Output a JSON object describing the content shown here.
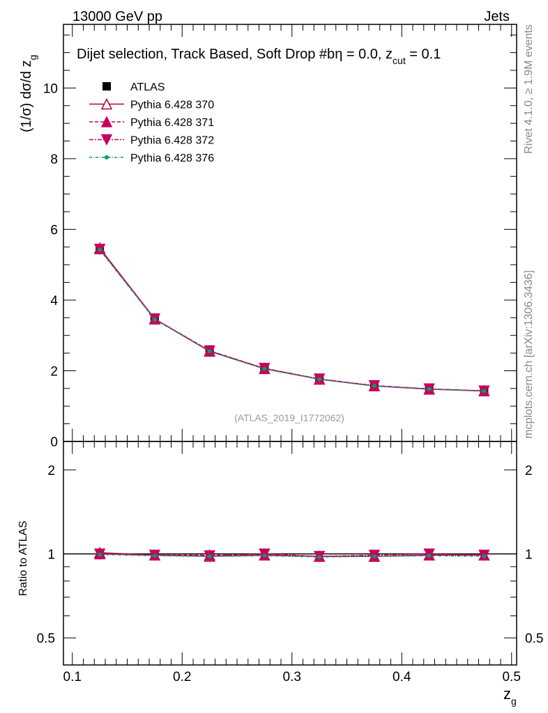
{
  "header": {
    "left": "13000 GeV pp",
    "right": "Jets"
  },
  "side_labels": {
    "rivet": "Rivet 4.1.0, ≥ 1.9M events",
    "mcplots": "mcplots.cern.ch [arXiv:1306.3436]"
  },
  "chart_data": [
    {
      "type": "line",
      "title": "Dijet selection, Track Based, Soft Drop #b",
      "title_suffix": "η = 0.0, z",
      "title_sub": "cut",
      "title_end": " = 0.1",
      "ylabel": "(1/σ) dσ/d z",
      "ylabel_sub": "g",
      "xlim": [
        0.0919,
        0.5046
      ],
      "ylim": [
        0,
        11.8
      ],
      "yticks": [
        0,
        2,
        4,
        6,
        8,
        10
      ],
      "watermark": "(ATLAS_2019_I1772062)",
      "x": [
        0.125,
        0.175,
        0.225,
        0.275,
        0.325,
        0.375,
        0.425,
        0.475
      ],
      "legend_position": "top-left",
      "series": [
        {
          "name": "ATLAS",
          "color": "#000000",
          "marker": "square",
          "values": [
            5.45,
            3.5,
            2.6,
            2.08,
            1.8,
            1.6,
            1.5,
            1.45
          ]
        },
        {
          "name": "Pythia 6.428 370",
          "color": "#b2003a",
          "marker": "triangle-open",
          "dash": "",
          "values": [
            5.47,
            3.47,
            2.55,
            2.06,
            1.76,
            1.57,
            1.48,
            1.43
          ]
        },
        {
          "name": "Pythia 6.428 371",
          "color": "#c8005a",
          "marker": "triangle",
          "dash": "5,3",
          "values": [
            5.45,
            3.46,
            2.57,
            2.06,
            1.76,
            1.57,
            1.48,
            1.43
          ]
        },
        {
          "name": "Pythia 6.428 372",
          "color": "#c8005a",
          "marker": "triangle-down",
          "dash": "6,2,2,2",
          "values": [
            5.44,
            3.47,
            2.56,
            2.07,
            1.77,
            1.58,
            1.49,
            1.43
          ]
        },
        {
          "name": "Pythia 6.428 376",
          "color": "#009977",
          "marker": "dot",
          "dash": "4,2,1,2",
          "values": [
            5.42,
            3.45,
            2.55,
            2.05,
            1.76,
            1.57,
            1.48,
            1.42
          ]
        }
      ]
    },
    {
      "type": "line",
      "ylabel": "Ratio to ATLAS",
      "xlabel": "z",
      "xlabel_sub": "g",
      "yscale": "log",
      "ylim": [
        0.4,
        2.53
      ],
      "yticks": [
        0.5,
        1,
        2
      ],
      "xticks": [
        0.1,
        0.2,
        0.3,
        0.4,
        0.5
      ],
      "x": [
        0.125,
        0.175,
        0.225,
        0.275,
        0.325,
        0.375,
        0.425,
        0.475
      ],
      "series": [
        {
          "name": "Pythia 6.428 370",
          "values": [
            1.01,
            0.99,
            0.98,
            0.99,
            0.98,
            0.98,
            0.99,
            0.99
          ]
        },
        {
          "name": "Pythia 6.428 371",
          "values": [
            1.0,
            0.99,
            0.99,
            0.99,
            0.98,
            0.98,
            0.99,
            0.99
          ]
        },
        {
          "name": "Pythia 6.428 372",
          "values": [
            1.0,
            0.99,
            0.985,
            1.0,
            0.98,
            0.99,
            1.0,
            0.99
          ]
        },
        {
          "name": "Pythia 6.428 376",
          "values": [
            0.995,
            0.985,
            0.98,
            0.985,
            0.975,
            0.98,
            0.985,
            0.98
          ]
        }
      ]
    }
  ]
}
